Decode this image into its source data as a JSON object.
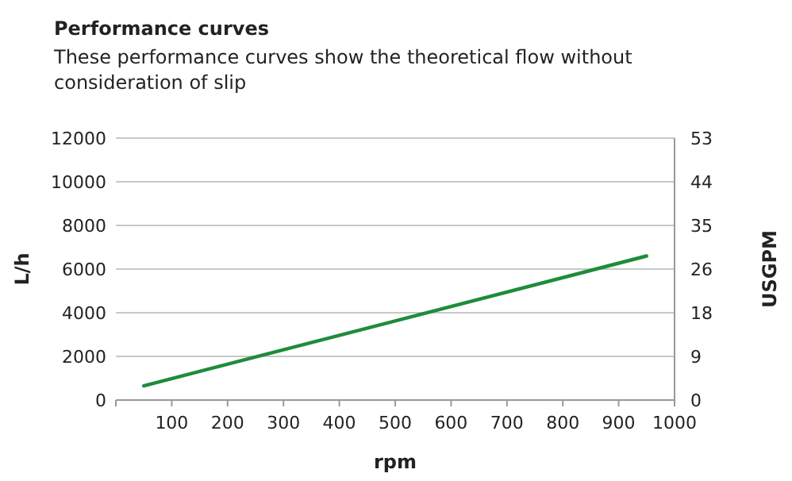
{
  "chart_data": {
    "type": "line",
    "title": "Performance curves",
    "subtitle": "These performance curves show the theoretical flow without consideration of slip",
    "xlabel": "rpm",
    "ylabel": "L/h",
    "y2label": "USGPM",
    "x": [
      50,
      950
    ],
    "series": [
      {
        "color": "#1e8c3a",
        "values": [
          650,
          6600
        ]
      }
    ],
    "xlim": [
      0,
      1000
    ],
    "xticks": [
      {
        "value": 0,
        "label": null
      },
      100,
      200,
      300,
      400,
      500,
      600,
      700,
      800,
      900,
      1000
    ],
    "ylim": [
      0,
      12000
    ],
    "yticks": [
      0,
      2000,
      4000,
      6000,
      8000,
      10000,
      12000
    ],
    "y2lim": [
      0,
      53
    ],
    "y2ticks": [
      0,
      {
        "value": 8.8,
        "label": "9"
      },
      {
        "value": 17.7,
        "label": "18"
      },
      {
        "value": 26.5,
        "label": "26"
      },
      {
        "value": 35.3,
        "label": "35"
      },
      {
        "value": 44.2,
        "label": "44"
      },
      53
    ],
    "grid": "y",
    "marker": "none",
    "line_style": "solid"
  }
}
